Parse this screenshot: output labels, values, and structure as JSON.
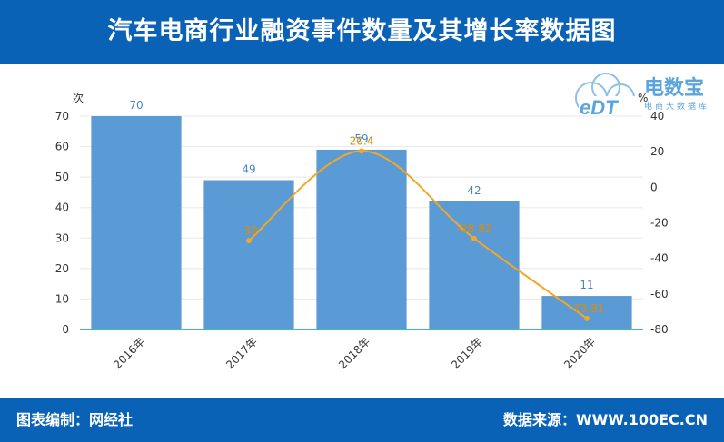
{
  "header": {
    "title": "汽车电商行业融资事件数量及其增长率数据图"
  },
  "footer": {
    "left": "图表编制：网经社",
    "right": "数据来源：WWW.100EC.CN"
  },
  "logo": {
    "mark": "eDT",
    "name": "电数宝",
    "tagline": "电商大数据库",
    "color": "#5aa5de"
  },
  "chart_data": {
    "type": "bar+line",
    "categories": [
      "2016年",
      "2017年",
      "2018年",
      "2019年",
      "2020年"
    ],
    "series": [
      {
        "kind": "bar",
        "axis": "left",
        "values": [
          70,
          49,
          59,
          42,
          11
        ],
        "color": "#5b9bd5"
      },
      {
        "kind": "line",
        "axis": "right",
        "values": [
          null,
          -30,
          20.4,
          -28.82,
          -73.81
        ],
        "labels": [
          "",
          "-30",
          "20.4",
          "-28.82",
          "-73.81"
        ],
        "color": "#f5a623"
      }
    ],
    "y_left": {
      "label": "次",
      "ylim": [
        0,
        70
      ],
      "ticks": [
        "0",
        "10",
        "20",
        "30",
        "40",
        "50",
        "60",
        "70"
      ]
    },
    "y_right": {
      "label": "%",
      "ylim": [
        -80,
        40
      ],
      "ticks": [
        "-80",
        "-60",
        "-40",
        "-20",
        "0",
        "20",
        "40"
      ]
    },
    "grid": true,
    "legend": "none"
  }
}
